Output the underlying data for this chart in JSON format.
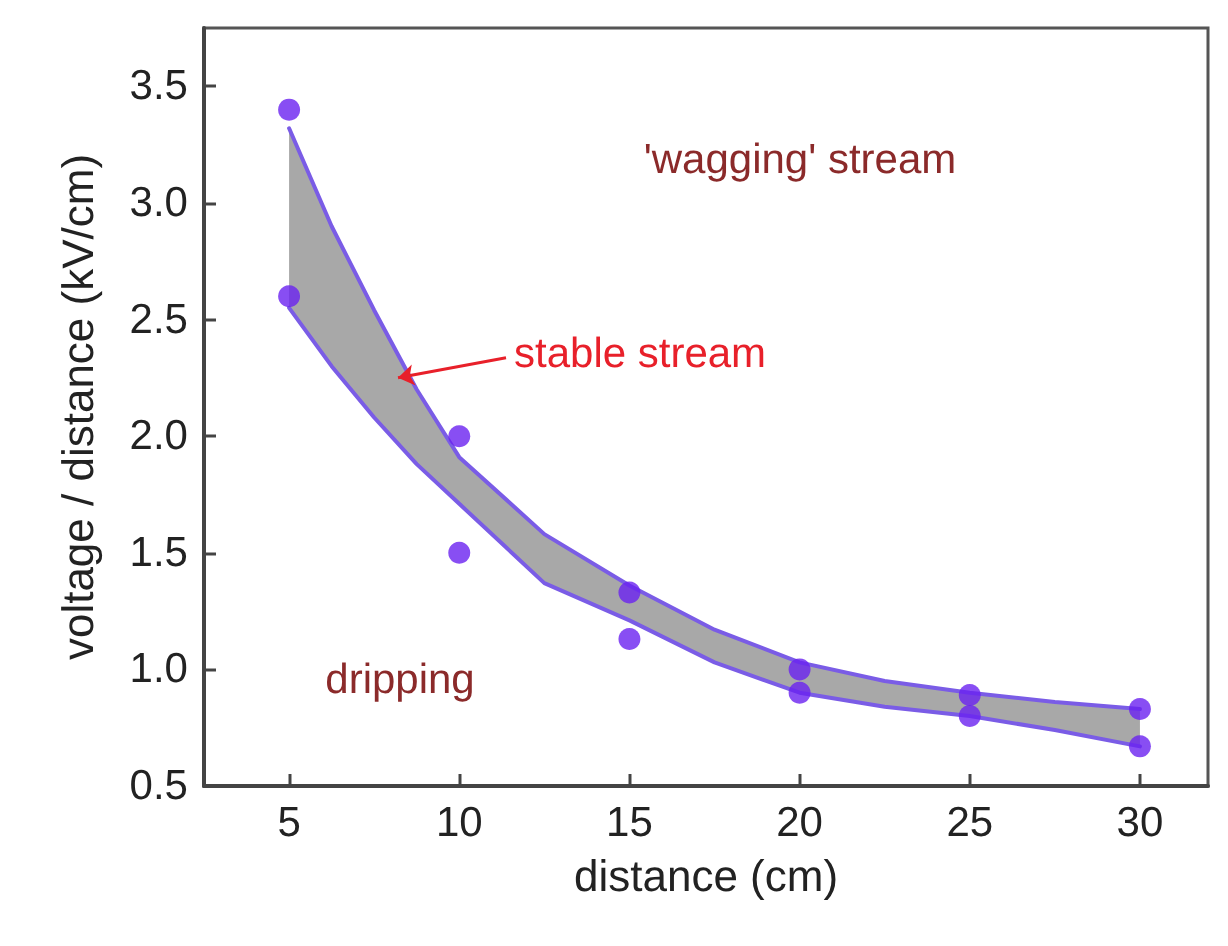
{
  "chart_data": {
    "type": "scatter",
    "xlabel": "distance (cm)",
    "ylabel": "voltage / distance (kV/cm)",
    "x": [
      5,
      10,
      15,
      20,
      25,
      30
    ],
    "series": [
      {
        "color": "#6a22f0",
        "marker": "circle",
        "values": [
          3.4,
          2.0,
          1.33,
          1.0,
          0.89,
          0.83
        ]
      },
      {
        "color": "#6a22f0",
        "marker": "circle",
        "values": [
          2.6,
          1.5,
          1.13,
          0.9,
          0.8,
          0.67
        ]
      },
      {
        "type": "line",
        "color": "#7a5ce6",
        "marker": "none",
        "x": [
          5,
          6.25,
          7.5,
          8.75,
          10,
          12.5,
          15,
          17.5,
          20,
          22.5,
          25,
          27.5,
          30
        ],
        "values": [
          3.32,
          2.9,
          2.54,
          2.2,
          1.91,
          1.58,
          1.36,
          1.17,
          1.03,
          0.95,
          0.9,
          0.86,
          0.83
        ],
        "lower": [
          2.55,
          2.3,
          2.08,
          1.88,
          1.71,
          1.37,
          1.21,
          1.03,
          0.9,
          0.84,
          0.8,
          0.74,
          0.67
        ],
        "upper": [
          3.32,
          2.9,
          2.54,
          2.2,
          1.91,
          1.58,
          1.36,
          1.17,
          1.03,
          0.95,
          0.9,
          0.86,
          0.83
        ]
      },
      {
        "type": "line",
        "color": "#7a5ce6",
        "marker": "none",
        "x": [
          5,
          6.25,
          7.5,
          8.75,
          10,
          12.5,
          15,
          17.5,
          20,
          22.5,
          25,
          27.5,
          30
        ],
        "values": [
          2.55,
          2.3,
          2.08,
          1.88,
          1.71,
          1.37,
          1.21,
          1.03,
          0.9,
          0.84,
          0.8,
          0.74,
          0.67
        ]
      }
    ],
    "annotations": [
      "'wagging' stream",
      {
        "text": "stable stream",
        "x": 8.2,
        "y": 2.25
      },
      "dripping"
    ],
    "xlim": [
      2.5,
      32
    ],
    "xticks": [
      5,
      10,
      15,
      20,
      25,
      30
    ],
    "ylim": [
      0.5,
      3.75
    ],
    "yticks": [
      0.5,
      {
        "value": 1,
        "label": "1.0"
      },
      1.5,
      {
        "value": 2,
        "label": "2.0"
      },
      2.5,
      {
        "value": 3,
        "label": "3.0"
      },
      3.5
    ],
    "grid": false,
    "line_style": "solid"
  }
}
